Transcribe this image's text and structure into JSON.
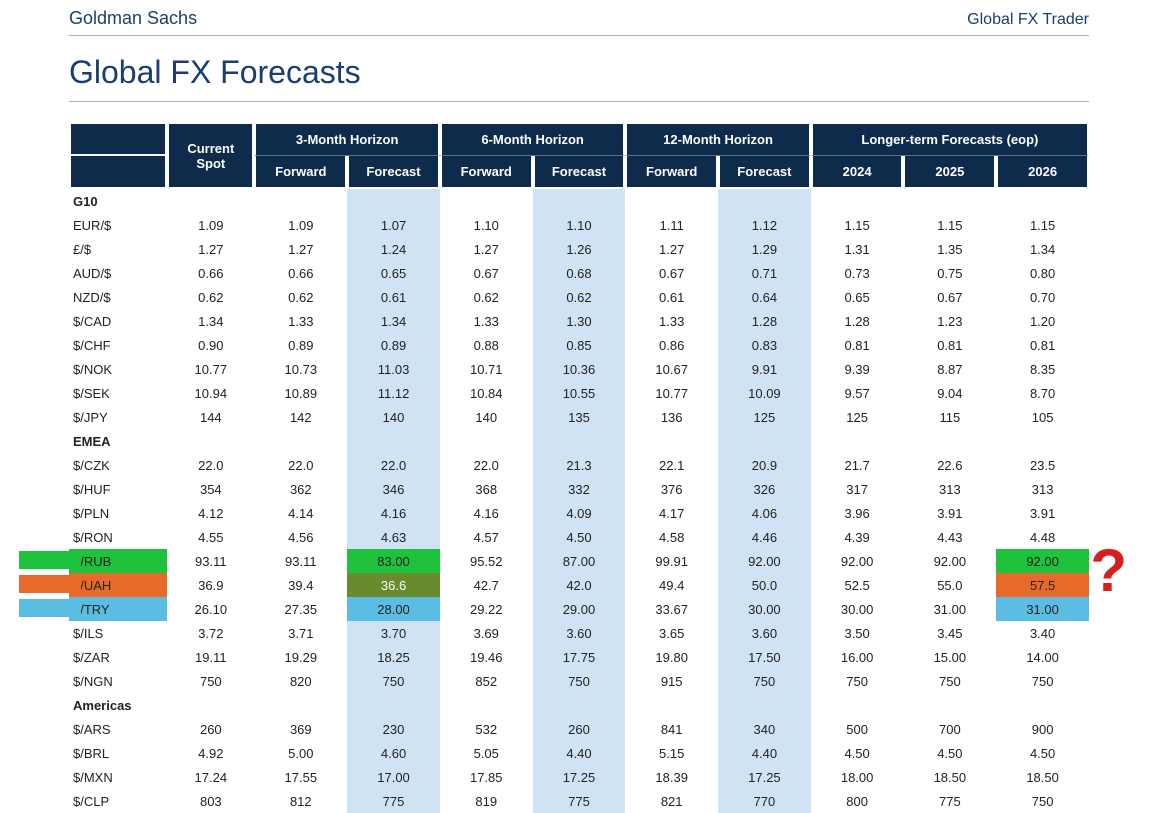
{
  "brand": "Goldman Sachs",
  "product": "Global FX Trader",
  "title": "Global FX Forecasts",
  "colors": {
    "header_bg": "#0f2b4c",
    "header_fg": "#ffffff",
    "band_bg": "#cfe3f5",
    "brand_fg": "#1a3e6e",
    "hl_green": "#1fc23c",
    "hl_orange": "#e86a2a",
    "hl_cyan": "#5abde1",
    "hl_olive": "#6a8a2e",
    "annot_red": "#d81f1f"
  },
  "header": {
    "spot": "Current Spot",
    "h3": "3-Month Horizon",
    "h6": "6-Month Horizon",
    "h12": "12-Month Horizon",
    "long": "Longer-term Forecasts (eop)",
    "fwd": "Forward",
    "fc": "Forecast",
    "y2024": "2024",
    "y2025": "2025",
    "y2026": "2026"
  },
  "groups": [
    {
      "name": "G10",
      "rows": [
        {
          "pair": "EUR/$",
          "spot": "1.09",
          "f3": "1.09",
          "c3": "1.07",
          "f6": "1.10",
          "c6": "1.10",
          "f12": "1.11",
          "c12": "1.12",
          "y24": "1.15",
          "y25": "1.15",
          "y26": "1.15"
        },
        {
          "pair": "£/$",
          "spot": "1.27",
          "f3": "1.27",
          "c3": "1.24",
          "f6": "1.27",
          "c6": "1.26",
          "f12": "1.27",
          "c12": "1.29",
          "y24": "1.31",
          "y25": "1.35",
          "y26": "1.34"
        },
        {
          "pair": "AUD/$",
          "spot": "0.66",
          "f3": "0.66",
          "c3": "0.65",
          "f6": "0.67",
          "c6": "0.68",
          "f12": "0.67",
          "c12": "0.71",
          "y24": "0.73",
          "y25": "0.75",
          "y26": "0.80"
        },
        {
          "pair": "NZD/$",
          "spot": "0.62",
          "f3": "0.62",
          "c3": "0.61",
          "f6": "0.62",
          "c6": "0.62",
          "f12": "0.61",
          "c12": "0.64",
          "y24": "0.65",
          "y25": "0.67",
          "y26": "0.70"
        },
        {
          "pair": "$/CAD",
          "spot": "1.34",
          "f3": "1.33",
          "c3": "1.34",
          "f6": "1.33",
          "c6": "1.30",
          "f12": "1.33",
          "c12": "1.28",
          "y24": "1.28",
          "y25": "1.23",
          "y26": "1.20"
        },
        {
          "pair": "$/CHF",
          "spot": "0.90",
          "f3": "0.89",
          "c3": "0.89",
          "f6": "0.88",
          "c6": "0.85",
          "f12": "0.86",
          "c12": "0.83",
          "y24": "0.81",
          "y25": "0.81",
          "y26": "0.81"
        },
        {
          "pair": "$/NOK",
          "spot": "10.77",
          "f3": "10.73",
          "c3": "11.03",
          "f6": "10.71",
          "c6": "10.36",
          "f12": "10.67",
          "c12": "9.91",
          "y24": "9.39",
          "y25": "8.87",
          "y26": "8.35"
        },
        {
          "pair": "$/SEK",
          "spot": "10.94",
          "f3": "10.89",
          "c3": "11.12",
          "f6": "10.84",
          "c6": "10.55",
          "f12": "10.77",
          "c12": "10.09",
          "y24": "9.57",
          "y25": "9.04",
          "y26": "8.70"
        },
        {
          "pair": "$/JPY",
          "spot": "144",
          "f3": "142",
          "c3": "140",
          "f6": "140",
          "c6": "135",
          "f12": "136",
          "c12": "125",
          "y24": "125",
          "y25": "115",
          "y26": "105"
        }
      ]
    },
    {
      "name": "EMEA",
      "rows": [
        {
          "pair": "$/CZK",
          "spot": "22.0",
          "f3": "22.0",
          "c3": "22.0",
          "f6": "22.0",
          "c6": "21.3",
          "f12": "22.1",
          "c12": "20.9",
          "y24": "21.7",
          "y25": "22.6",
          "y26": "23.5"
        },
        {
          "pair": "$/HUF",
          "spot": "354",
          "f3": "362",
          "c3": "346",
          "f6": "368",
          "c6": "332",
          "f12": "376",
          "c12": "326",
          "y24": "317",
          "y25": "313",
          "y26": "313"
        },
        {
          "pair": "$/PLN",
          "spot": "4.12",
          "f3": "4.14",
          "c3": "4.16",
          "f6": "4.16",
          "c6": "4.09",
          "f12": "4.17",
          "c12": "4.06",
          "y24": "3.96",
          "y25": "3.91",
          "y26": "3.91"
        },
        {
          "pair": "$/RON",
          "spot": "4.55",
          "f3": "4.56",
          "c3": "4.63",
          "f6": "4.57",
          "c6": "4.50",
          "f12": "4.58",
          "c12": "4.46",
          "y24": "4.39",
          "y25": "4.43",
          "y26": "4.48"
        },
        {
          "pair": "$/RUB",
          "spot": "93.11",
          "f3": "93.11",
          "c3": "83.00",
          "f6": "95.52",
          "c6": "87.00",
          "f12": "99.91",
          "c12": "92.00",
          "y24": "92.00",
          "y25": "92.00",
          "y26": "92.00",
          "hl_label": "green",
          "hl_c3": "green",
          "hl_y26": "green"
        },
        {
          "pair": "$/UAH",
          "spot": "36.9",
          "f3": "39.4",
          "c3": "36.6",
          "f6": "42.7",
          "c6": "42.0",
          "f12": "49.4",
          "c12": "50.0",
          "y24": "52.5",
          "y25": "55.0",
          "y26": "57.5",
          "hl_label": "orange",
          "hl_c3": "olive",
          "hl_y26": "orange"
        },
        {
          "pair": "$/TRY",
          "spot": "26.10",
          "f3": "27.35",
          "c3": "28.00",
          "f6": "29.22",
          "c6": "29.00",
          "f12": "33.67",
          "c12": "30.00",
          "y24": "30.00",
          "y25": "31.00",
          "y26": "31.00",
          "hl_label": "cyan",
          "hl_c3": "cyan",
          "hl_y26": "cyan"
        },
        {
          "pair": "$/ILS",
          "spot": "3.72",
          "f3": "3.71",
          "c3": "3.70",
          "f6": "3.69",
          "c6": "3.60",
          "f12": "3.65",
          "c12": "3.60",
          "y24": "3.50",
          "y25": "3.45",
          "y26": "3.40"
        },
        {
          "pair": "$/ZAR",
          "spot": "19.11",
          "f3": "19.29",
          "c3": "18.25",
          "f6": "19.46",
          "c6": "17.75",
          "f12": "19.80",
          "c12": "17.50",
          "y24": "16.00",
          "y25": "15.00",
          "y26": "14.00"
        },
        {
          "pair": "$/NGN",
          "spot": "750",
          "f3": "820",
          "c3": "750",
          "f6": "852",
          "c6": "750",
          "f12": "915",
          "c12": "750",
          "y24": "750",
          "y25": "750",
          "y26": "750"
        }
      ]
    },
    {
      "name": "Americas",
      "rows": [
        {
          "pair": "$/ARS",
          "spot": "260",
          "f3": "369",
          "c3": "230",
          "f6": "532",
          "c6": "260",
          "f12": "841",
          "c12": "340",
          "y24": "500",
          "y25": "700",
          "y26": "900"
        },
        {
          "pair": "$/BRL",
          "spot": "4.92",
          "f3": "5.00",
          "c3": "4.60",
          "f6": "5.05",
          "c6": "4.40",
          "f12": "5.15",
          "c12": "4.40",
          "y24": "4.50",
          "y25": "4.50",
          "y26": "4.50"
        },
        {
          "pair": "$/MXN",
          "spot": "17.24",
          "f3": "17.55",
          "c3": "17.00",
          "f6": "17.85",
          "c6": "17.25",
          "f12": "18.39",
          "c12": "17.25",
          "y24": "18.00",
          "y25": "18.50",
          "y26": "18.50"
        },
        {
          "pair": "$/CLP",
          "spot": "803",
          "f3": "812",
          "c3": "775",
          "f6": "819",
          "c6": "775",
          "f12": "821",
          "c12": "770",
          "y24": "800",
          "y25": "775",
          "y26": "750"
        }
      ]
    }
  ],
  "annotation": {
    "question_mark": "?"
  }
}
